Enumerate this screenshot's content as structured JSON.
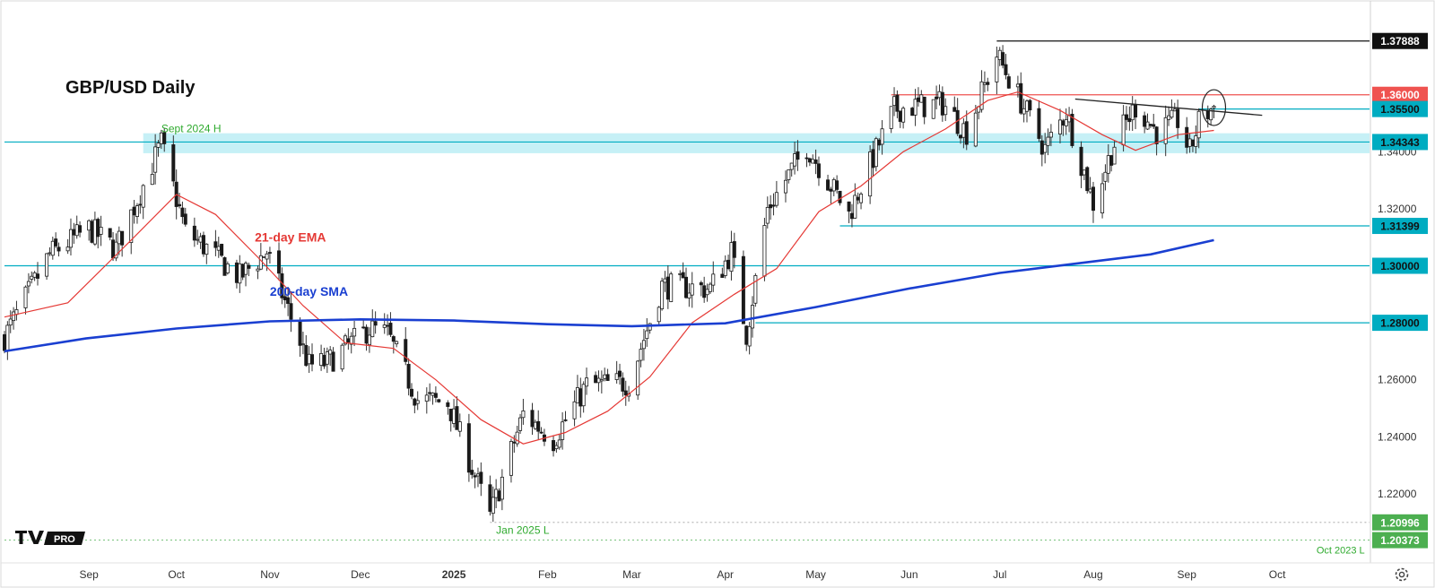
{
  "chart_data": {
    "type": "candlestick",
    "title": "GBP/USD Daily",
    "x_ticks": [
      "Sep",
      "Oct",
      "Nov",
      "Dec",
      "2025",
      "Feb",
      "Mar",
      "Apr",
      "May",
      "Jun",
      "Jul",
      "Aug",
      "Sep",
      "Oct"
    ],
    "y_ticks": [
      "1.34000",
      "1.32000",
      "1.26000",
      "1.24000",
      "1.22000"
    ],
    "ylim": [
      1.197,
      1.392
    ],
    "x_range": [
      "2024-08-05",
      "2025-10-31"
    ],
    "grid": false,
    "horizontal_levels": [
      {
        "label": "1.37888",
        "value": 1.37888,
        "from": "2025-06-30",
        "color": "#111111",
        "tag_bg": "#111111",
        "tag_fg": "#ffffff"
      },
      {
        "label": "1.36000",
        "value": 1.36,
        "from": "2025-05-26",
        "color": "#ef5350",
        "tag_bg": "#ef5350",
        "tag_fg": "#ffffff"
      },
      {
        "label": "1.35500",
        "value": 1.355,
        "from": "2025-09-05",
        "color": "#00acc1",
        "tag_bg": "#00acc1",
        "tag_fg": "#111111"
      },
      {
        "label": "1.34343",
        "value": 1.34343,
        "from": "2024-08-05",
        "color": "#00acc1",
        "tag_bg": "#00acc1",
        "tag_fg": "#111111"
      },
      {
        "label": "1.31399",
        "value": 1.31399,
        "from": "2025-05-09",
        "color": "#00acc1",
        "tag_bg": "#00acc1",
        "tag_fg": "#111111"
      },
      {
        "label": "1.30000",
        "value": 1.3,
        "from": "2024-08-05",
        "color": "#00acc1",
        "tag_bg": "#00acc1",
        "tag_fg": "#111111"
      },
      {
        "label": "1.28000",
        "value": 1.28,
        "from": "2025-04-11",
        "color": "#00acc1",
        "tag_bg": "#00acc1",
        "tag_fg": "#111111"
      },
      {
        "label": "1.20996",
        "value": 1.20996,
        "from": "2025-01-13",
        "color": "#9e9e9e",
        "dashed": true,
        "tag_bg": "#4caf50",
        "tag_fg": "#ffffff"
      },
      {
        "label": "1.20373",
        "value": 1.20373,
        "from": "2024-08-05",
        "color": "#4caf50",
        "dashed": true,
        "tag_bg": "#4caf50",
        "tag_fg": "#ffffff"
      }
    ],
    "zone": {
      "from_value": 1.3395,
      "to_value": 1.3465,
      "from_date": "2024-09-20"
    },
    "trendline": {
      "points": [
        [
          "2025-07-26",
          1.3585
        ],
        [
          "2025-09-26",
          1.3528
        ]
      ]
    },
    "annotations": [
      {
        "text": "Sept 2024 H",
        "date": "2024-09-26",
        "value": 1.3468,
        "color": "#2eaa2e"
      },
      {
        "text": "21-day EMA",
        "date": "2024-10-27",
        "value": 1.3085,
        "color": "#e53935"
      },
      {
        "text": "200-day SMA",
        "date": "2024-11-01",
        "value": 1.2895,
        "color": "#1a3fd1"
      },
      {
        "text": "Jan 2025 L",
        "date": "2025-01-15",
        "value": 1.206,
        "color": "#2eaa2e"
      },
      {
        "text": "Oct 2023 L",
        "date": "2025-10-14",
        "value": 1.199,
        "color": "#2eaa2e"
      }
    ],
    "breakout_marker": {
      "date": "2025-09-10",
      "value": 1.3555
    },
    "anchors": [
      [
        "2024-08-05",
        1.275
      ],
      [
        "2024-08-20",
        1.304
      ],
      [
        "2024-09-02",
        1.313
      ],
      [
        "2024-09-11",
        1.306
      ],
      [
        "2024-09-26",
        1.343
      ],
      [
        "2024-10-04",
        1.312
      ],
      [
        "2024-10-10",
        1.307
      ],
      [
        "2024-10-22",
        1.296
      ],
      [
        "2024-10-31",
        1.305
      ],
      [
        "2024-11-04",
        1.293
      ],
      [
        "2024-11-14",
        1.265
      ],
      [
        "2024-11-20",
        1.266
      ],
      [
        "2024-12-04",
        1.278
      ],
      [
        "2024-12-10",
        1.276
      ],
      [
        "2024-12-20",
        1.253
      ],
      [
        "2024-12-30",
        1.252
      ],
      [
        "2025-01-13",
        1.212
      ],
      [
        "2025-01-24",
        1.248
      ],
      [
        "2025-02-03",
        1.239
      ],
      [
        "2025-02-14",
        1.258
      ],
      [
        "2025-02-28",
        1.259
      ],
      [
        "2025-03-11",
        1.293
      ],
      [
        "2025-03-27",
        1.292
      ],
      [
        "2025-04-03",
        1.305
      ],
      [
        "2025-04-08",
        1.276
      ],
      [
        "2025-04-15",
        1.32
      ],
      [
        "2025-04-28",
        1.342
      ],
      [
        "2025-05-12",
        1.318
      ],
      [
        "2025-05-20",
        1.338
      ],
      [
        "2025-05-27",
        1.355
      ],
      [
        "2025-06-12",
        1.357
      ],
      [
        "2025-06-20",
        1.347
      ],
      [
        "2025-06-30",
        1.374
      ],
      [
        "2025-07-04",
        1.366
      ],
      [
        "2025-07-16",
        1.341
      ],
      [
        "2025-07-23",
        1.354
      ],
      [
        "2025-08-01",
        1.322
      ],
      [
        "2025-08-08",
        1.343
      ],
      [
        "2025-08-15",
        1.356
      ],
      [
        "2025-08-22",
        1.347
      ],
      [
        "2025-08-29",
        1.351
      ],
      [
        "2025-09-02",
        1.34
      ],
      [
        "2025-09-05",
        1.3505
      ],
      [
        "2025-09-10",
        1.356
      ]
    ],
    "series": [
      {
        "name": "21-day EMA",
        "color": "#e53935",
        "points": [
          [
            "2024-08-05",
            1.282
          ],
          [
            "2024-08-26",
            1.287
          ],
          [
            "2024-09-16",
            1.309
          ],
          [
            "2024-10-01",
            1.325
          ],
          [
            "2024-10-14",
            1.318
          ],
          [
            "2024-10-28",
            1.303
          ],
          [
            "2024-11-12",
            1.286
          ],
          [
            "2024-11-26",
            1.273
          ],
          [
            "2024-12-12",
            1.271
          ],
          [
            "2024-12-26",
            1.26
          ],
          [
            "2025-01-10",
            1.246
          ],
          [
            "2025-01-24",
            1.2375
          ],
          [
            "2025-02-07",
            1.2415
          ],
          [
            "2025-02-21",
            1.249
          ],
          [
            "2025-03-07",
            1.261
          ],
          [
            "2025-03-21",
            1.28
          ],
          [
            "2025-04-04",
            1.29
          ],
          [
            "2025-04-18",
            1.299
          ],
          [
            "2025-05-02",
            1.319
          ],
          [
            "2025-05-16",
            1.328
          ],
          [
            "2025-05-30",
            1.34
          ],
          [
            "2025-06-13",
            1.348
          ],
          [
            "2025-06-27",
            1.358
          ],
          [
            "2025-07-07",
            1.361
          ],
          [
            "2025-07-21",
            1.3545
          ],
          [
            "2025-08-04",
            1.346
          ],
          [
            "2025-08-15",
            1.3405
          ],
          [
            "2025-08-29",
            1.346
          ],
          [
            "2025-09-10",
            1.3475
          ]
        ]
      },
      {
        "name": "200-day SMA",
        "color": "#1a3fd1",
        "points": [
          [
            "2024-08-05",
            1.27
          ],
          [
            "2024-09-01",
            1.2745
          ],
          [
            "2024-10-01",
            1.278
          ],
          [
            "2024-11-01",
            1.2805
          ],
          [
            "2024-12-01",
            1.2812
          ],
          [
            "2025-01-01",
            1.2808
          ],
          [
            "2025-02-01",
            1.2795
          ],
          [
            "2025-03-01",
            1.2788
          ],
          [
            "2025-04-01",
            1.2798
          ],
          [
            "2025-05-01",
            1.2855
          ],
          [
            "2025-06-01",
            1.292
          ],
          [
            "2025-07-01",
            1.2975
          ],
          [
            "2025-08-01",
            1.3015
          ],
          [
            "2025-08-20",
            1.304
          ],
          [
            "2025-09-10",
            1.309
          ]
        ]
      }
    ]
  },
  "branding": {
    "logo_text": "TV",
    "pro_text": "PRO"
  },
  "settings_icon": "gear-icon"
}
